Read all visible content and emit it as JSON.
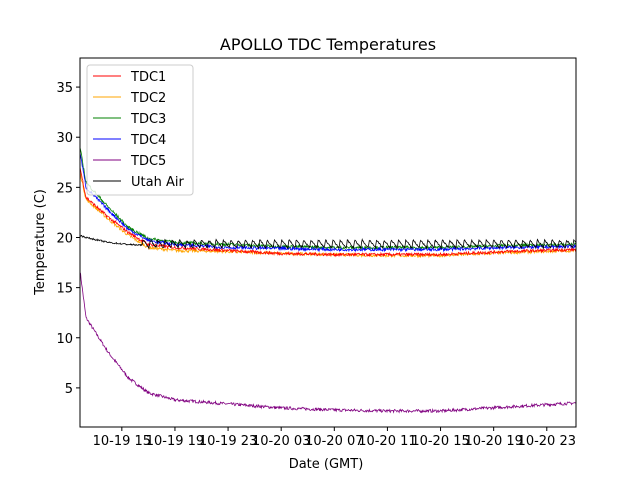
{
  "chart_data": {
    "type": "line",
    "title": "APOLLO TDC Temperatures",
    "xlabel": "Date (GMT)",
    "ylabel": "Temperature (C)",
    "x_units": "hours since 10-19 00:00 GMT",
    "xlim": [
      11.85,
      49.2
    ],
    "ylim": [
      1.1,
      37.9
    ],
    "grid": false,
    "legend_position": "top-left",
    "x_ticks": [
      {
        "value": 15,
        "label": "10-19 15"
      },
      {
        "value": 19,
        "label": "10-19 19"
      },
      {
        "value": 23,
        "label": "10-19 23"
      },
      {
        "value": 27,
        "label": "10-20 03"
      },
      {
        "value": 31,
        "label": "10-20 07"
      },
      {
        "value": 35,
        "label": "10-20 11"
      },
      {
        "value": 39,
        "label": "10-20 15"
      },
      {
        "value": 43,
        "label": "10-20 19"
      },
      {
        "value": 47,
        "label": "10-20 23"
      }
    ],
    "y_ticks": [
      {
        "value": 5,
        "label": "5"
      },
      {
        "value": 10,
        "label": "10"
      },
      {
        "value": 15,
        "label": "15"
      },
      {
        "value": 20,
        "label": "20"
      },
      {
        "value": 25,
        "label": "25"
      },
      {
        "value": 30,
        "label": "30"
      },
      {
        "value": 35,
        "label": "35"
      }
    ],
    "x": [
      11.85,
      12.3,
      14,
      15.5,
      17,
      19,
      23,
      27,
      31,
      35,
      39,
      44,
      49.2
    ],
    "series": [
      {
        "name": "TDC1",
        "color": "#ff0000",
        "values": [
          27,
          24,
          22,
          20.5,
          19.3,
          19.0,
          18.7,
          18.4,
          18.3,
          18.3,
          18.3,
          18.6,
          18.8
        ]
      },
      {
        "name": "TDC2",
        "color": "#ffa500",
        "values": [
          26.5,
          23.8,
          21.8,
          20.2,
          19.0,
          18.7,
          18.6,
          18.4,
          18.3,
          18.2,
          18.2,
          18.5,
          18.7
        ]
      },
      {
        "name": "TDC3",
        "color": "#008000",
        "values": [
          29,
          25.5,
          23,
          21,
          19.9,
          19.5,
          19.3,
          19.1,
          19.0,
          19.0,
          19.0,
          19.2,
          19.3
        ]
      },
      {
        "name": "TDC4",
        "color": "#0000ff",
        "values": [
          28.5,
          25,
          22.7,
          20.8,
          19.7,
          19.3,
          19.0,
          18.9,
          18.8,
          18.8,
          18.8,
          19.0,
          19.1
        ]
      },
      {
        "name": "TDC5",
        "color": "#800080",
        "values": [
          16.7,
          12,
          8.5,
          6,
          4.5,
          3.8,
          3.4,
          3.0,
          2.8,
          2.7,
          2.7,
          3.1,
          3.5
        ]
      },
      {
        "name": "Utah Air",
        "color": "#000000",
        "values": [
          20.2,
          20.0,
          19.5,
          19.3,
          19.2,
          19.2,
          19.2,
          19.2,
          19.2,
          19.2,
          19.2,
          19.2,
          19.2
        ],
        "sawtooth_amplitude": 0.8,
        "sawtooth_period_hours": 0.55
      }
    ]
  }
}
